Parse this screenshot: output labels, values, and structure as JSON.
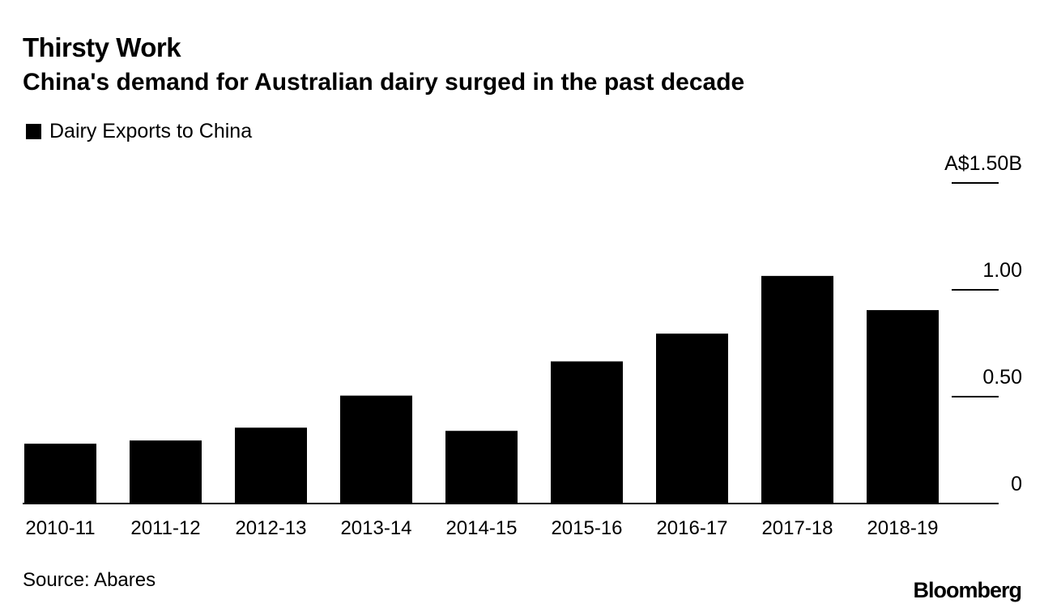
{
  "header": {
    "title": "Thirsty Work",
    "subtitle": "China's demand for Australian dairy surged in the past decade"
  },
  "footer": {
    "source": "Source: Abares",
    "brand": "Bloomberg"
  },
  "colors": {
    "bar": "#000000",
    "axis": "#000000",
    "background": "#ffffff"
  },
  "chart_data": {
    "type": "bar",
    "title": "Thirsty Work",
    "subtitle": "China's demand for Australian dairy surged in the past decade",
    "xlabel": "",
    "ylabel": "",
    "categories": [
      "2010-11",
      "2011-12",
      "2012-13",
      "2013-14",
      "2014-15",
      "2015-16",
      "2016-17",
      "2017-18",
      "2018-19"
    ],
    "series": [
      {
        "name": "Dairy Exports to China",
        "values": [
          0.28,
          0.295,
          0.355,
          0.505,
          0.34,
          0.665,
          0.795,
          1.065,
          0.905
        ]
      }
    ],
    "ylim": [
      0,
      1.5
    ],
    "yticks": [
      {
        "value": 0,
        "label": "0"
      },
      {
        "value": 0.5,
        "label": "0.50"
      },
      {
        "value": 1.0,
        "label": "1.00"
      },
      {
        "value": 1.5,
        "label": "A$1.50B"
      }
    ],
    "legend_position": "top-left",
    "grid": false
  }
}
